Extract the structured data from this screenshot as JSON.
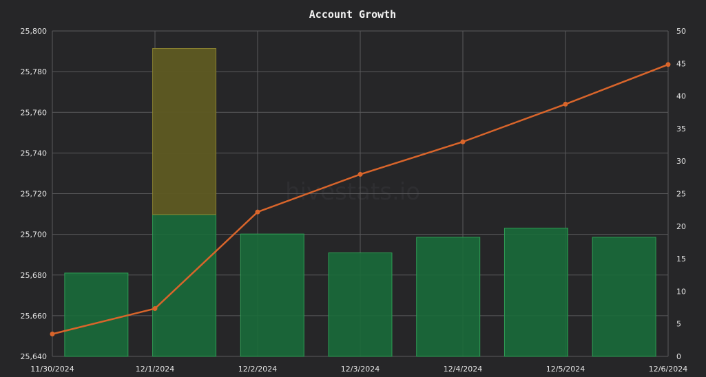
{
  "chart_data": {
    "type": "bar",
    "title": "Account Growth",
    "watermark": "hivestats.io",
    "categories": [
      "11/30/2024",
      "12/1/2024",
      "12/2/2024",
      "12/3/2024",
      "12/4/2024",
      "12/5/2024",
      "12/6/2024"
    ],
    "left_axis": {
      "min": 25640,
      "max": 25800,
      "step": 20,
      "ticks": [
        "25,640",
        "25,660",
        "25,680",
        "25,700",
        "25,720",
        "25,740",
        "25,760",
        "25,780",
        "25,800"
      ]
    },
    "right_axis": {
      "min": 0,
      "max": 50,
      "step": 5,
      "ticks": [
        "0",
        "5",
        "10",
        "15",
        "20",
        "25",
        "30",
        "35",
        "40",
        "45",
        "50"
      ]
    },
    "bars": {
      "axis": "right",
      "series": [
        {
          "color": "#1a6b3a",
          "values": [
            12.8,
            21.8,
            18.8,
            15.9,
            18.3,
            19.7,
            18.3
          ]
        },
        {
          "color": "#5e5a22",
          "values": [
            0,
            25.5,
            0,
            0,
            0,
            0,
            0
          ]
        }
      ]
    },
    "line": {
      "axis": "left",
      "color": "#d9652b",
      "values": [
        25651,
        25663.5,
        25711,
        25729.5,
        25745.5,
        25764,
        25783.5
      ]
    },
    "grid": true
  }
}
